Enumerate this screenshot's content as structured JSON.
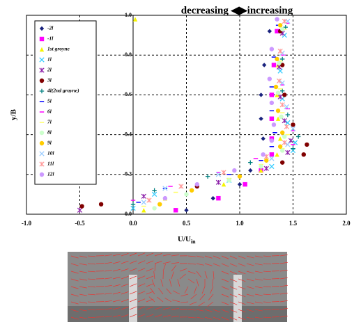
{
  "chart_data": {
    "type": "scatter",
    "title": "decreasing ◀▶increasing",
    "x_label": "U/U",
    "x_label_sub": "in",
    "y_label": "y/B",
    "xlim": [
      -1,
      2
    ],
    "ylim": [
      0,
      1
    ],
    "xticks": [
      {
        "value": -1,
        "label": "-1.0"
      },
      -0.5,
      {
        "value": 0,
        "label": "0.0"
      },
      0.5,
      {
        "value": 1,
        "label": "1.0"
      },
      1.5,
      {
        "value": 2,
        "label": "2.0"
      }
    ],
    "yticks": [
      {
        "value": 0,
        "label": "0.0"
      },
      0.2,
      0.4,
      0.6,
      0.8,
      {
        "value": 1,
        "label": "1.0"
      }
    ],
    "grid": true,
    "legend": "upper left",
    "series": [
      {
        "name": "-2l",
        "color": "#1a237e",
        "marker": "diamond",
        "x": [
          0.5,
          0.75,
          1.0,
          1.1,
          1.22,
          1.22,
          1.2,
          1.2,
          1.23,
          1.28
        ],
        "values": [
          0.02,
          0.08,
          0.15,
          0.22,
          0.3,
          0.38,
          0.48,
          0.6,
          0.75,
          0.92
        ]
      },
      {
        "name": "-1l",
        "color": "#ff00ff",
        "marker": "square",
        "x": [
          0.4,
          0.8,
          1.05,
          1.2,
          1.3,
          1.3,
          1.3,
          1.3,
          1.32,
          1.35
        ],
        "values": [
          0.02,
          0.08,
          0.15,
          0.22,
          0.3,
          0.38,
          0.48,
          0.6,
          0.75,
          0.92
        ]
      },
      {
        "name": "1st groyne",
        "color": "#f5f500",
        "marker": "triangle",
        "x": [
          0.1,
          0.3,
          0.85,
          1.2,
          1.35,
          1.38,
          1.36,
          1.35,
          1.36,
          0.02
        ],
        "values": [
          0.02,
          0.08,
          0.15,
          0.22,
          0.3,
          0.38,
          0.48,
          0.6,
          0.75,
          0.98
        ]
      },
      {
        "name": "1l",
        "color": "#33ccff",
        "marker": "x",
        "x": [
          0.0,
          0.2,
          0.9,
          1.3,
          1.5,
          1.52,
          1.45,
          1.4,
          1.38,
          1.42
        ],
        "values": [
          0.03,
          0.1,
          0.17,
          0.24,
          0.32,
          0.36,
          0.46,
          0.58,
          0.72,
          0.9
        ]
      },
      {
        "name": "2l",
        "color": "#8e24aa",
        "marker": "star",
        "x": [
          -0.5,
          0.1,
          0.8,
          1.25,
          1.45,
          1.48,
          1.42,
          1.38,
          1.37,
          1.4
        ],
        "values": [
          0.02,
          0.09,
          0.16,
          0.23,
          0.31,
          0.37,
          0.47,
          0.59,
          0.74,
          0.91
        ]
      },
      {
        "name": "3l",
        "color": "#800000",
        "marker": "circle",
        "x": [
          -0.48,
          -0.3,
          0.6,
          1.4,
          1.6,
          1.63,
          1.5,
          1.42,
          1.4,
          1.38
        ],
        "values": [
          0.04,
          0.05,
          0.14,
          0.26,
          0.3,
          0.35,
          0.45,
          0.6,
          0.75,
          0.92
        ]
      },
      {
        "name": "4l(2nd groyne)",
        "color": "#008080",
        "marker": "plus",
        "x": [
          0.0,
          0.2,
          0.7,
          1.1,
          1.5,
          1.55,
          1.45,
          1.4,
          1.4,
          1.43
        ],
        "values": [
          0.05,
          0.12,
          0.19,
          0.26,
          0.33,
          0.39,
          0.5,
          0.62,
          0.78,
          0.94
        ]
      },
      {
        "name": "5l",
        "color": "#0000ff",
        "marker": "dash",
        "x": [
          0.05,
          0.3,
          0.9,
          1.2,
          1.3,
          1.33,
          1.3,
          1.3,
          1.32,
          1.36
        ],
        "values": [
          0.06,
          0.13,
          0.2,
          0.27,
          0.34,
          0.41,
          0.52,
          0.64,
          0.79,
          0.95
        ]
      },
      {
        "name": "6l",
        "color": "#ff00ff",
        "marker": "dash",
        "x": [
          0.0,
          0.35,
          0.8,
          1.15,
          1.5,
          1.5,
          1.45,
          1.4,
          1.41,
          1.45
        ],
        "values": [
          0.07,
          0.14,
          0.21,
          0.28,
          0.35,
          0.42,
          0.53,
          0.65,
          0.8,
          0.96
        ]
      },
      {
        "name": "7l",
        "color": "#ffff66",
        "marker": "dash",
        "x": [
          0.1,
          0.4,
          0.9,
          1.2,
          1.4,
          1.45,
          1.4,
          1.38,
          1.38,
          1.42
        ],
        "values": [
          0.04,
          0.11,
          0.18,
          0.25,
          0.33,
          0.4,
          0.51,
          0.63,
          0.77,
          0.93
        ]
      },
      {
        "name": "8l",
        "color": "#ccffcc",
        "marker": "circle",
        "x": [
          0.2,
          0.5,
          0.9,
          1.2,
          1.4,
          1.42,
          1.39,
          1.36,
          1.37,
          1.4
        ],
        "values": [
          0.03,
          0.1,
          0.17,
          0.24,
          0.32,
          0.39,
          0.49,
          0.61,
          0.76,
          0.93
        ]
      },
      {
        "name": "9l",
        "color": "#ffcc00",
        "marker": "circle",
        "x": [
          0.25,
          0.55,
          1.0,
          1.25,
          1.38,
          1.4,
          1.36,
          1.34,
          1.35,
          1.38
        ],
        "values": [
          0.05,
          0.12,
          0.19,
          0.27,
          0.34,
          0.41,
          0.52,
          0.64,
          0.78,
          0.95
        ]
      },
      {
        "name": "10l",
        "color": "#99ccff",
        "marker": "x",
        "x": [
          0.1,
          0.3,
          0.8,
          1.3,
          1.45,
          1.5,
          1.44,
          1.4,
          1.4,
          1.45
        ],
        "values": [
          0.06,
          0.13,
          0.2,
          0.28,
          0.35,
          0.43,
          0.54,
          0.66,
          0.81,
          0.97
        ]
      },
      {
        "name": "11l",
        "color": "#ff9999",
        "marker": "star",
        "x": [
          0.15,
          0.45,
          0.85,
          1.25,
          1.42,
          1.44,
          1.4,
          1.37,
          1.38,
          1.42
        ],
        "values": [
          0.07,
          0.14,
          0.21,
          0.29,
          0.36,
          0.44,
          0.55,
          0.67,
          0.82,
          0.97
        ]
      },
      {
        "name": "12l",
        "color": "#cc99ff",
        "marker": "circle",
        "x": [
          0.3,
          0.6,
          0.95,
          1.22,
          1.3,
          1.32,
          1.3,
          1.28,
          1.3,
          1.35
        ],
        "values": [
          0.08,
          0.15,
          0.22,
          0.3,
          0.37,
          0.45,
          0.56,
          0.68,
          0.83,
          0.98
        ]
      }
    ]
  }
}
